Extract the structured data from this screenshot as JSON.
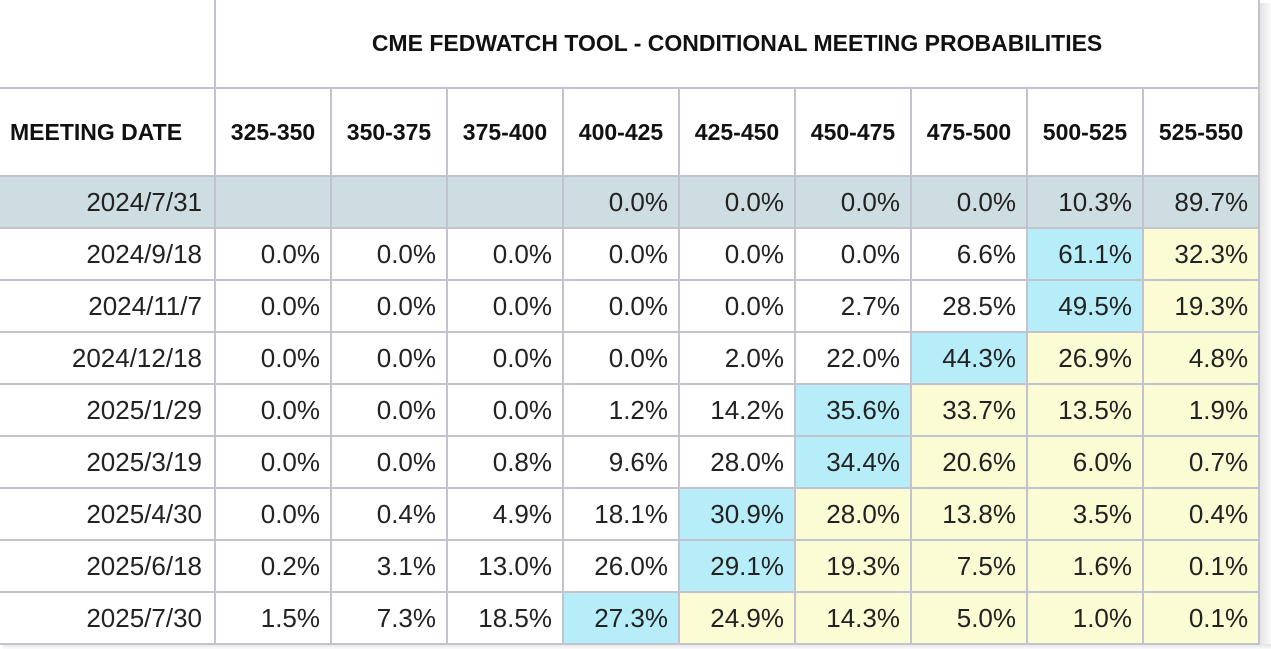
{
  "table": {
    "title": "CME FEDWATCH TOOL - CONDITIONAL MEETING PROBABILITIES",
    "date_header": "MEETING DATE",
    "columns": [
      "325-350",
      "350-375",
      "375-400",
      "400-425",
      "425-450",
      "450-475",
      "475-500",
      "500-525",
      "525-550"
    ],
    "rows": [
      {
        "date": "2024/7/31",
        "values": [
          "",
          "",
          "",
          "0.0%",
          "0.0%",
          "0.0%",
          "0.0%",
          "10.3%",
          "89.7%"
        ],
        "max_index": 8
      },
      {
        "date": "2024/9/18",
        "values": [
          "0.0%",
          "0.0%",
          "0.0%",
          "0.0%",
          "0.0%",
          "0.0%",
          "6.6%",
          "61.1%",
          "32.3%"
        ],
        "max_index": 7
      },
      {
        "date": "2024/11/7",
        "values": [
          "0.0%",
          "0.0%",
          "0.0%",
          "0.0%",
          "0.0%",
          "2.7%",
          "28.5%",
          "49.5%",
          "19.3%"
        ],
        "max_index": 7
      },
      {
        "date": "2024/12/18",
        "values": [
          "0.0%",
          "0.0%",
          "0.0%",
          "0.0%",
          "2.0%",
          "22.0%",
          "44.3%",
          "26.9%",
          "4.8%"
        ],
        "max_index": 6
      },
      {
        "date": "2025/1/29",
        "values": [
          "0.0%",
          "0.0%",
          "0.0%",
          "1.2%",
          "14.2%",
          "35.6%",
          "33.7%",
          "13.5%",
          "1.9%"
        ],
        "max_index": 5
      },
      {
        "date": "2025/3/19",
        "values": [
          "0.0%",
          "0.0%",
          "0.8%",
          "9.6%",
          "28.0%",
          "34.4%",
          "20.6%",
          "6.0%",
          "0.7%"
        ],
        "max_index": 5
      },
      {
        "date": "2025/4/30",
        "values": [
          "0.0%",
          "0.4%",
          "4.9%",
          "18.1%",
          "30.9%",
          "28.0%",
          "13.8%",
          "3.5%",
          "0.4%"
        ],
        "max_index": 4
      },
      {
        "date": "2025/6/18",
        "values": [
          "0.2%",
          "3.1%",
          "13.0%",
          "26.0%",
          "29.1%",
          "19.3%",
          "7.5%",
          "1.6%",
          "0.1%"
        ],
        "max_index": 4
      },
      {
        "date": "2025/7/30",
        "values": [
          "1.5%",
          "7.3%",
          "18.5%",
          "27.3%",
          "24.9%",
          "14.3%",
          "5.0%",
          "1.0%",
          "0.1%"
        ],
        "max_index": 3
      }
    ]
  },
  "colors": {
    "current_meeting_row": "#cddde1",
    "highest_probability": "#b6edf8",
    "above_current_target": "#fbfbd4",
    "grid": "#c3c3cf"
  }
}
